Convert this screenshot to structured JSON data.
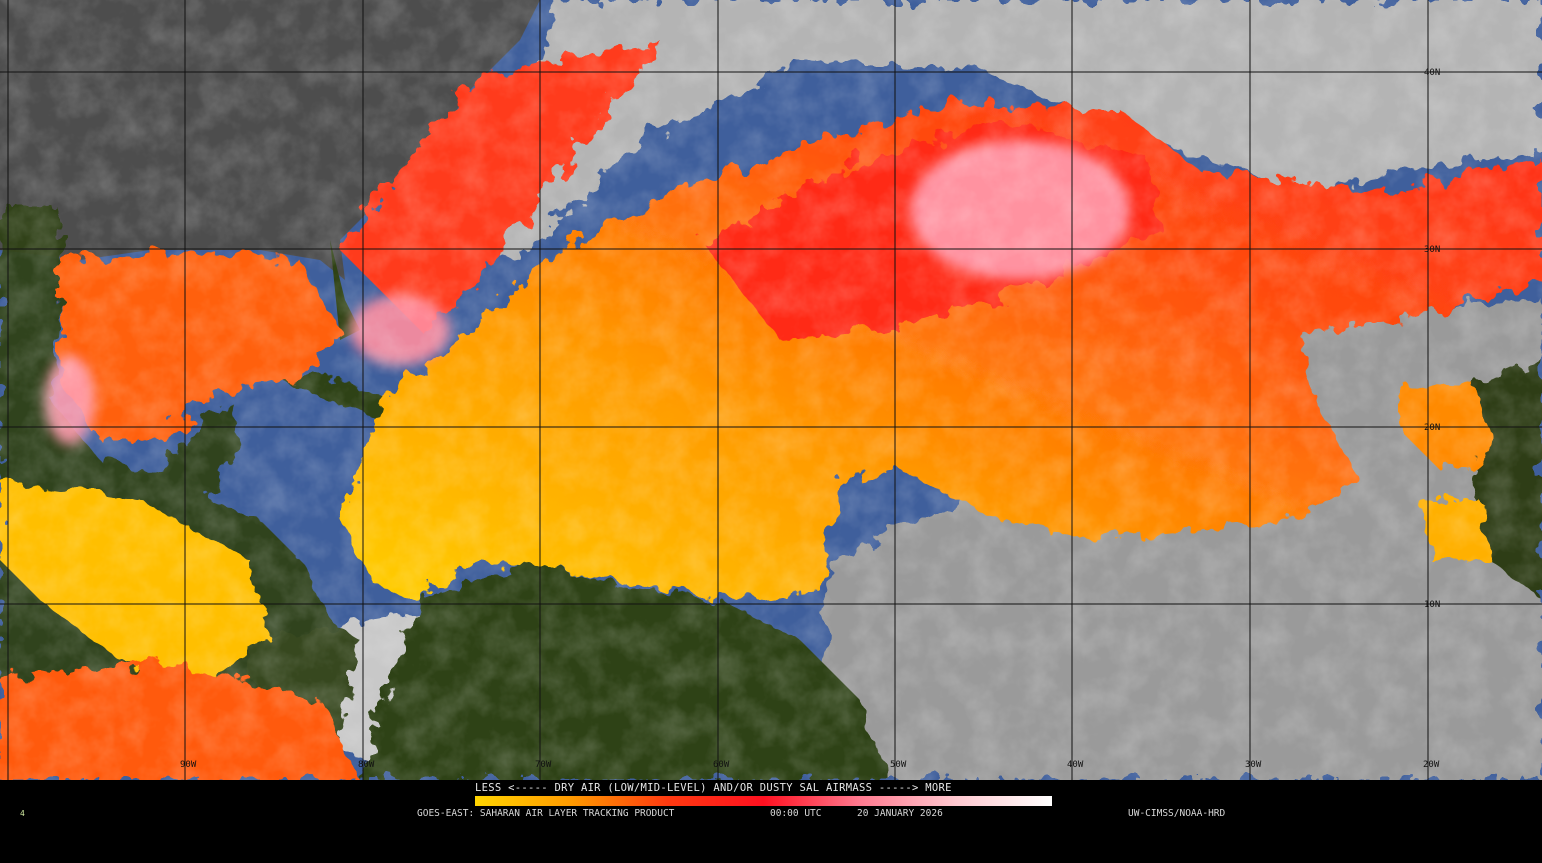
{
  "map": {
    "latitude_labels": [
      "40N",
      "30N",
      "20N",
      "10N"
    ],
    "longitude_labels": [
      "90W",
      "80W",
      "70W",
      "60W",
      "50W",
      "40W",
      "30W",
      "20W"
    ],
    "colors": {
      "ocean": "#3f5f9c",
      "cloud": "#a8a8a8",
      "land_north_america": "#4a4a4a",
      "land_tropics": "#2f4214",
      "sal_yellow": "#ffd400",
      "sal_orange": "#ff8a00",
      "sal_red": "#ff2a10",
      "sal_pink": "#ff9eb0"
    }
  },
  "legend": {
    "title": "LESS <----- DRY AIR (LOW/MID-LEVEL) AND/OR DUSTY SAL AIRMASS -----> MORE",
    "colorbar": [
      "#ffd400",
      "#ff9a00",
      "#ff3a10",
      "#ff1020",
      "#ff7a90",
      "#ffc8d0",
      "#ffffff"
    ]
  },
  "footer": {
    "product": "GOES-EAST: SAHARAN AIR LAYER TRACKING PRODUCT",
    "time": "00:00 UTC",
    "date": "20 JANUARY 2026",
    "source": "UW-CIMSS/NOAA-HRD",
    "corner_mark": "4"
  }
}
